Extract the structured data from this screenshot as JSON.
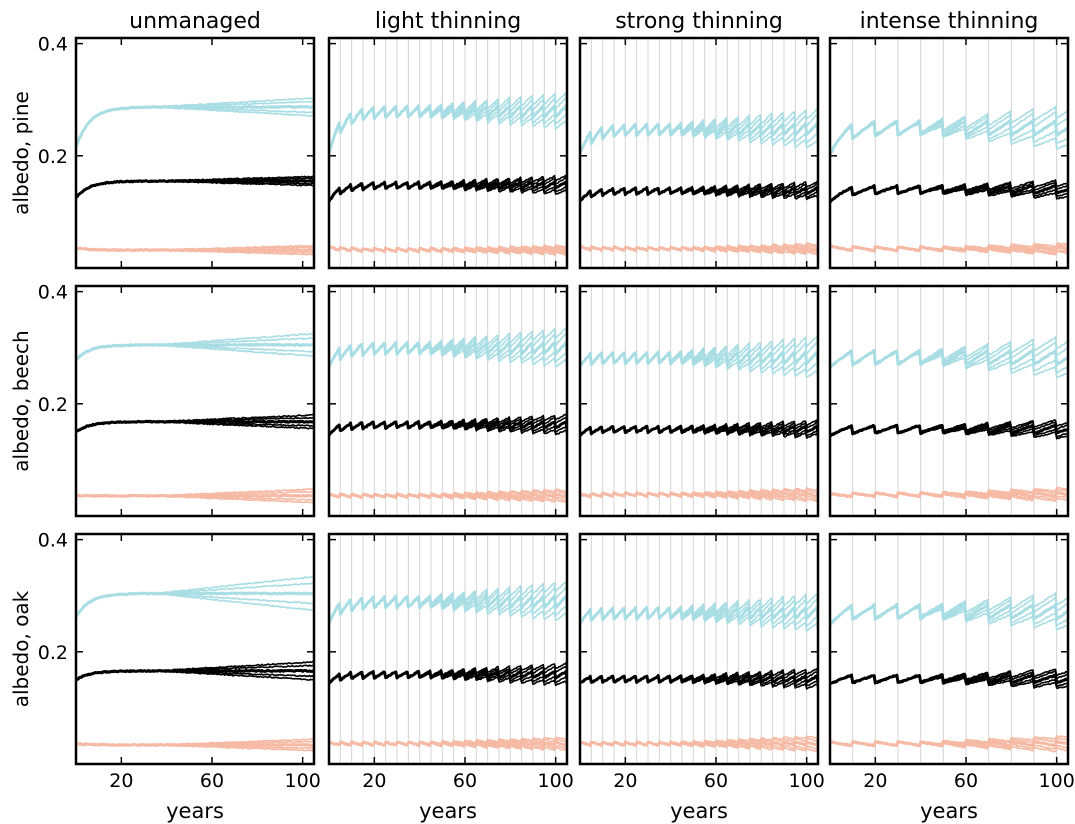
{
  "chart_data": {
    "type": "line",
    "layout": "3 rows x 4 columns of small-multiple line plots",
    "columns": [
      "unmanaged",
      "light thinning",
      "strong thinning",
      "intense thinning"
    ],
    "rows": [
      "albedo, pine",
      "albedo, beech",
      "albedo, oak"
    ],
    "xlabel": "years",
    "x_ticks": [
      20,
      60,
      100
    ],
    "xlim": [
      0,
      105
    ],
    "y_ticks": [
      0.2,
      0.4
    ],
    "y_tick_labels": [
      "0.2",
      "0.4"
    ],
    "ylim": [
      0.0,
      0.41
    ],
    "thinning_interval_years": {
      "unmanaged": 0,
      "light thinning": 5,
      "strong thinning": 5,
      "intense thinning": 10
    },
    "grid": "vertical lines at thinning events (thinning panels only)",
    "series_colors": {
      "upper": "#a8dde4",
      "middle": "#000000",
      "lower": "#f5b9a4"
    },
    "panels": [
      {
        "row": 0,
        "col": 0,
        "levels": [
          {
            "plateau": 0.287,
            "start": 0.215,
            "spread": 0.016
          },
          {
            "plateau": 0.155,
            "start": 0.125,
            "spread": 0.008
          },
          {
            "plateau": 0.032,
            "start": 0.036,
            "spread": 0.008
          }
        ]
      },
      {
        "row": 0,
        "col": 1,
        "levels": [
          {
            "plateau": 0.28,
            "start": 0.215,
            "spread": 0.025
          },
          {
            "plateau": 0.148,
            "start": 0.125,
            "spread": 0.013
          },
          {
            "plateau": 0.032,
            "start": 0.036,
            "spread": 0.007
          }
        ]
      },
      {
        "row": 0,
        "col": 2,
        "levels": [
          {
            "plateau": 0.248,
            "start": 0.215,
            "spread": 0.028
          },
          {
            "plateau": 0.138,
            "start": 0.125,
            "spread": 0.012
          },
          {
            "plateau": 0.034,
            "start": 0.036,
            "spread": 0.008
          }
        ]
      },
      {
        "row": 0,
        "col": 3,
        "levels": [
          {
            "plateau": 0.25,
            "start": 0.215,
            "spread": 0.03
          },
          {
            "plateau": 0.14,
            "start": 0.125,
            "spread": 0.012
          },
          {
            "plateau": 0.034,
            "start": 0.036,
            "spread": 0.008
          }
        ]
      },
      {
        "row": 1,
        "col": 0,
        "levels": [
          {
            "plateau": 0.305,
            "start": 0.278,
            "spread": 0.02
          },
          {
            "plateau": 0.168,
            "start": 0.15,
            "spread": 0.012
          },
          {
            "plateau": 0.036,
            "start": 0.036,
            "spread": 0.012
          }
        ]
      },
      {
        "row": 1,
        "col": 1,
        "levels": [
          {
            "plateau": 0.3,
            "start": 0.278,
            "spread": 0.028
          },
          {
            "plateau": 0.163,
            "start": 0.15,
            "spread": 0.014
          },
          {
            "plateau": 0.036,
            "start": 0.036,
            "spread": 0.01
          }
        ]
      },
      {
        "row": 1,
        "col": 2,
        "levels": [
          {
            "plateau": 0.283,
            "start": 0.278,
            "spread": 0.03
          },
          {
            "plateau": 0.155,
            "start": 0.15,
            "spread": 0.012
          },
          {
            "plateau": 0.038,
            "start": 0.036,
            "spread": 0.01
          }
        ]
      },
      {
        "row": 1,
        "col": 3,
        "levels": [
          {
            "plateau": 0.283,
            "start": 0.278,
            "spread": 0.028
          },
          {
            "plateau": 0.155,
            "start": 0.15,
            "spread": 0.012
          },
          {
            "plateau": 0.038,
            "start": 0.036,
            "spread": 0.01
          }
        ]
      },
      {
        "row": 2,
        "col": 0,
        "levels": [
          {
            "plateau": 0.304,
            "start": 0.262,
            "spread": 0.03
          },
          {
            "plateau": 0.166,
            "start": 0.15,
            "spread": 0.016
          },
          {
            "plateau": 0.034,
            "start": 0.036,
            "spread": 0.01
          }
        ]
      },
      {
        "row": 2,
        "col": 1,
        "levels": [
          {
            "plateau": 0.29,
            "start": 0.262,
            "spread": 0.028
          },
          {
            "plateau": 0.16,
            "start": 0.15,
            "spread": 0.016
          },
          {
            "plateau": 0.036,
            "start": 0.036,
            "spread": 0.01
          }
        ]
      },
      {
        "row": 2,
        "col": 2,
        "levels": [
          {
            "plateau": 0.27,
            "start": 0.262,
            "spread": 0.026
          },
          {
            "plateau": 0.152,
            "start": 0.15,
            "spread": 0.014
          },
          {
            "plateau": 0.036,
            "start": 0.036,
            "spread": 0.012
          }
        ]
      },
      {
        "row": 2,
        "col": 3,
        "levels": [
          {
            "plateau": 0.272,
            "start": 0.262,
            "spread": 0.024
          },
          {
            "plateau": 0.152,
            "start": 0.15,
            "spread": 0.013
          },
          {
            "plateau": 0.036,
            "start": 0.036,
            "spread": 0.012
          }
        ]
      }
    ]
  }
}
